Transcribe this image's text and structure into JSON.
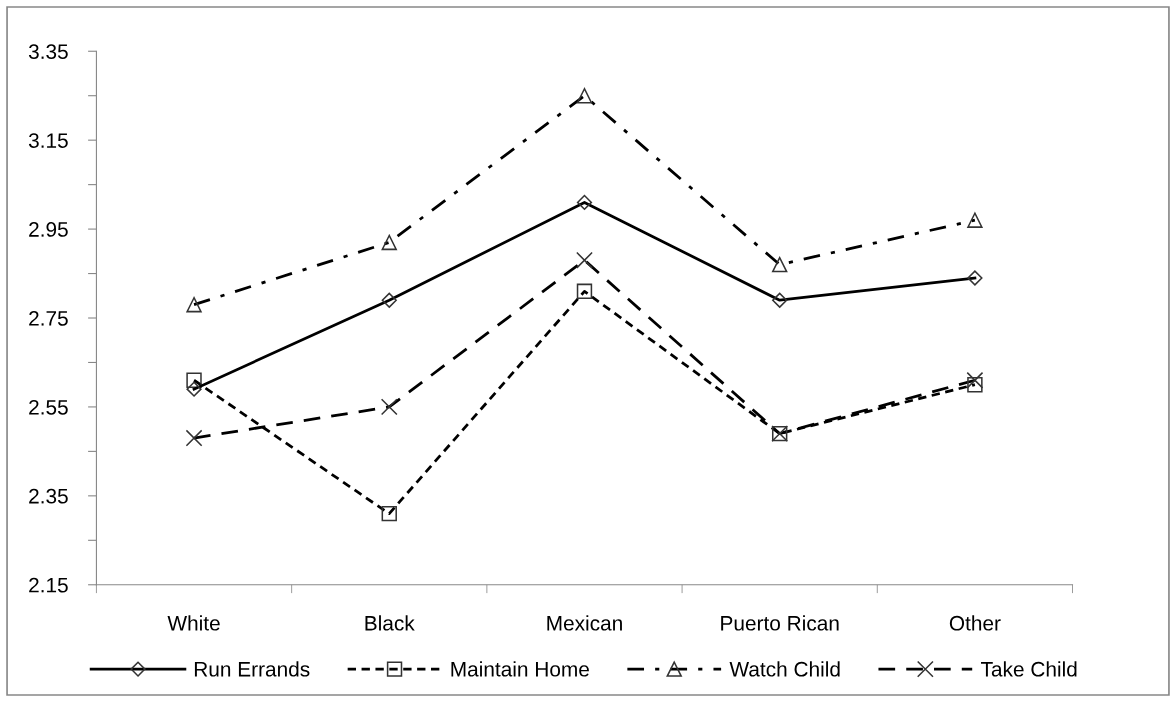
{
  "chart_data": {
    "type": "line",
    "categories": [
      "White",
      "Black",
      "Mexican",
      "Puerto Rican",
      "Other"
    ],
    "series": [
      {
        "name": "Run Errands",
        "color": "#000000",
        "marker": "diamond",
        "line_style": "solid",
        "values": [
          2.59,
          2.79,
          3.01,
          2.79,
          2.84
        ]
      },
      {
        "name": "Maintain Home",
        "color": "#000000",
        "marker": "square",
        "line_style": "dotted",
        "values": [
          2.61,
          2.31,
          2.81,
          2.49,
          2.6
        ]
      },
      {
        "name": "Watch Child",
        "color": "#000000",
        "marker": "triangle",
        "line_style": "dashdot",
        "values": [
          2.78,
          2.92,
          3.25,
          2.87,
          2.97
        ]
      },
      {
        "name": "Take Child",
        "color": "#000000",
        "marker": "cross",
        "line_style": "dashed",
        "values": [
          2.48,
          2.55,
          2.88,
          2.49,
          2.61
        ]
      }
    ],
    "ylim": [
      2.15,
      3.35
    ],
    "yticks": [
      2.15,
      {
        "value": 2.25,
        "label": null
      },
      2.35,
      {
        "value": 2.45,
        "label": null
      },
      2.55,
      {
        "value": 2.65,
        "label": null
      },
      2.75,
      {
        "value": 2.85,
        "label": null
      },
      2.95,
      {
        "value": 3.05,
        "label": null
      },
      3.15,
      {
        "value": 3.25,
        "label": null
      },
      3.35
    ],
    "grid": false,
    "legend": "bottom"
  }
}
